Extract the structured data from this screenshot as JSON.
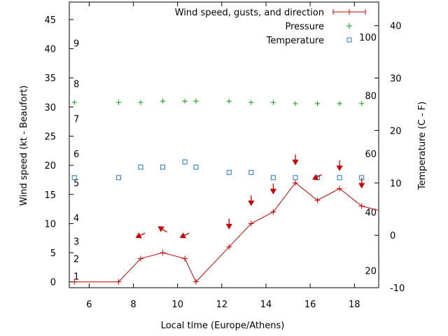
{
  "chart_data": {
    "type": "line",
    "xlabel": "Local time (Europe/Athens)",
    "ylabel_left": "Wind speed (kt - Beaufort)",
    "ylabel_right": "Temperature (C - F)",
    "xlim": [
      5.1,
      19.1
    ],
    "ylim_left": [
      -1,
      48
    ],
    "ylim_right": [
      -10,
      44.5
    ],
    "x_ticks": [
      6,
      8,
      10,
      12,
      14,
      16,
      18
    ],
    "y_left_ticks": [
      0,
      5,
      10,
      15,
      20,
      25,
      30,
      35,
      40,
      45
    ],
    "y_right_ticks": [
      -10,
      0,
      10,
      20,
      30,
      40
    ],
    "beaufort_labels": [
      {
        "label": "1",
        "kt": 1
      },
      {
        "label": "2",
        "kt": 4
      },
      {
        "label": "3",
        "kt": 7
      },
      {
        "label": "4",
        "kt": 11
      },
      {
        "label": "5",
        "kt": 17
      },
      {
        "label": "6",
        "kt": 22
      },
      {
        "label": "7",
        "kt": 28
      },
      {
        "label": "8",
        "kt": 34
      },
      {
        "label": "9",
        "kt": 41
      }
    ],
    "fahrenheit_labels": [
      {
        "label": "20",
        "celsius": -6.7
      },
      {
        "label": "40",
        "celsius": 4.4
      },
      {
        "label": "60",
        "celsius": 15.6
      },
      {
        "label": "80",
        "celsius": 26.7
      },
      {
        "label": "100",
        "celsius": 37.8
      }
    ],
    "legend_position": "top-right",
    "series": [
      {
        "name": "Wind speed, gusts, and direction",
        "color": "#cc0000",
        "x": [
          5.33,
          7.33,
          8.33,
          9.33,
          10.33,
          10.83,
          12.33,
          13.33,
          14.33,
          15.33,
          16.33,
          17.33,
          18.33,
          19.1
        ],
        "y": [
          0,
          0,
          4,
          5,
          4,
          0,
          6,
          10,
          12,
          17,
          14,
          16,
          13,
          12.3
        ]
      },
      {
        "name": "Pressure",
        "color": "#00aa00",
        "x": [
          5.33,
          7.33,
          8.33,
          9.33,
          10.33,
          10.83,
          12.33,
          13.33,
          14.33,
          15.33,
          16.33,
          17.33,
          18.33
        ],
        "y": [
          30.8,
          30.8,
          30.8,
          31.0,
          31.0,
          31.0,
          31.0,
          30.8,
          30.8,
          30.6,
          30.6,
          30.6,
          30.6
        ]
      },
      {
        "name": "Temperature",
        "color": "#1f77d0",
        "x": [
          5.33,
          7.33,
          8.33,
          9.33,
          10.33,
          10.83,
          12.33,
          13.33,
          14.33,
          15.33,
          16.33,
          17.33,
          18.33
        ],
        "y": [
          11,
          11,
          13,
          13,
          14,
          13,
          12,
          12,
          11,
          11,
          11,
          11,
          11
        ]
      }
    ],
    "wind_direction_arrows": [
      {
        "x": 8.33,
        "y": 8,
        "direction": "down-left"
      },
      {
        "x": 9.33,
        "y": 9,
        "direction": "up-left"
      },
      {
        "x": 10.33,
        "y": 8,
        "direction": "down-left"
      },
      {
        "x": 12.33,
        "y": 10,
        "direction": "down"
      },
      {
        "x": 13.33,
        "y": 14,
        "direction": "down"
      },
      {
        "x": 14.33,
        "y": 16,
        "direction": "down"
      },
      {
        "x": 15.33,
        "y": 21,
        "direction": "down"
      },
      {
        "x": 16.33,
        "y": 18,
        "direction": "down-left"
      },
      {
        "x": 17.33,
        "y": 20,
        "direction": "down"
      },
      {
        "x": 18.33,
        "y": 17,
        "direction": "down"
      }
    ],
    "colors": {
      "wind": "#cc0000",
      "pressure": "#00aa00",
      "temperature": "#1f77d0"
    }
  }
}
